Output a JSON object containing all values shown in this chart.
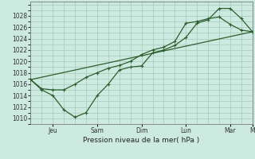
{
  "background_color": "#cdeae0",
  "grid_color": "#a8c8bc",
  "line_color": "#2d5e2d",
  "marker_color": "#2d5e2d",
  "ylabel": "Pression niveau de la mer( hPa )",
  "ylim": [
    1009.0,
    1030.5
  ],
  "yticks": [
    1010,
    1012,
    1014,
    1016,
    1018,
    1020,
    1022,
    1024,
    1026,
    1028
  ],
  "xlim": [
    0,
    20
  ],
  "xtick_positions": [
    2,
    6,
    10,
    14,
    18,
    20
  ],
  "xtick_labels": [
    "Jeu",
    "Sam",
    "Dim",
    "Lun",
    "Mar",
    "M"
  ],
  "line1_x": [
    0,
    1,
    2,
    3,
    4,
    5,
    6,
    7,
    8,
    9,
    10,
    11,
    12,
    13,
    14,
    15,
    16,
    17,
    18,
    19,
    20
  ],
  "line1_y": [
    1016.8,
    1015.0,
    1014.0,
    1011.5,
    1010.2,
    1011.0,
    1014.0,
    1016.0,
    1018.5,
    1019.0,
    1019.2,
    1021.5,
    1022.0,
    1022.8,
    1024.2,
    1026.7,
    1027.3,
    1029.3,
    1029.3,
    1027.5,
    1025.2
  ],
  "line2_x": [
    0,
    1,
    2,
    3,
    4,
    5,
    6,
    7,
    8,
    9,
    10,
    11,
    12,
    13,
    14,
    15,
    16,
    17,
    18,
    19,
    20
  ],
  "line2_y": [
    1016.8,
    1015.2,
    1015.0,
    1015.0,
    1016.0,
    1017.2,
    1018.0,
    1018.8,
    1019.3,
    1020.0,
    1021.2,
    1022.0,
    1022.5,
    1023.5,
    1026.7,
    1027.0,
    1027.5,
    1027.8,
    1026.5,
    1025.5,
    1025.2
  ],
  "line3_x": [
    0,
    20
  ],
  "line3_y": [
    1016.8,
    1025.2
  ]
}
